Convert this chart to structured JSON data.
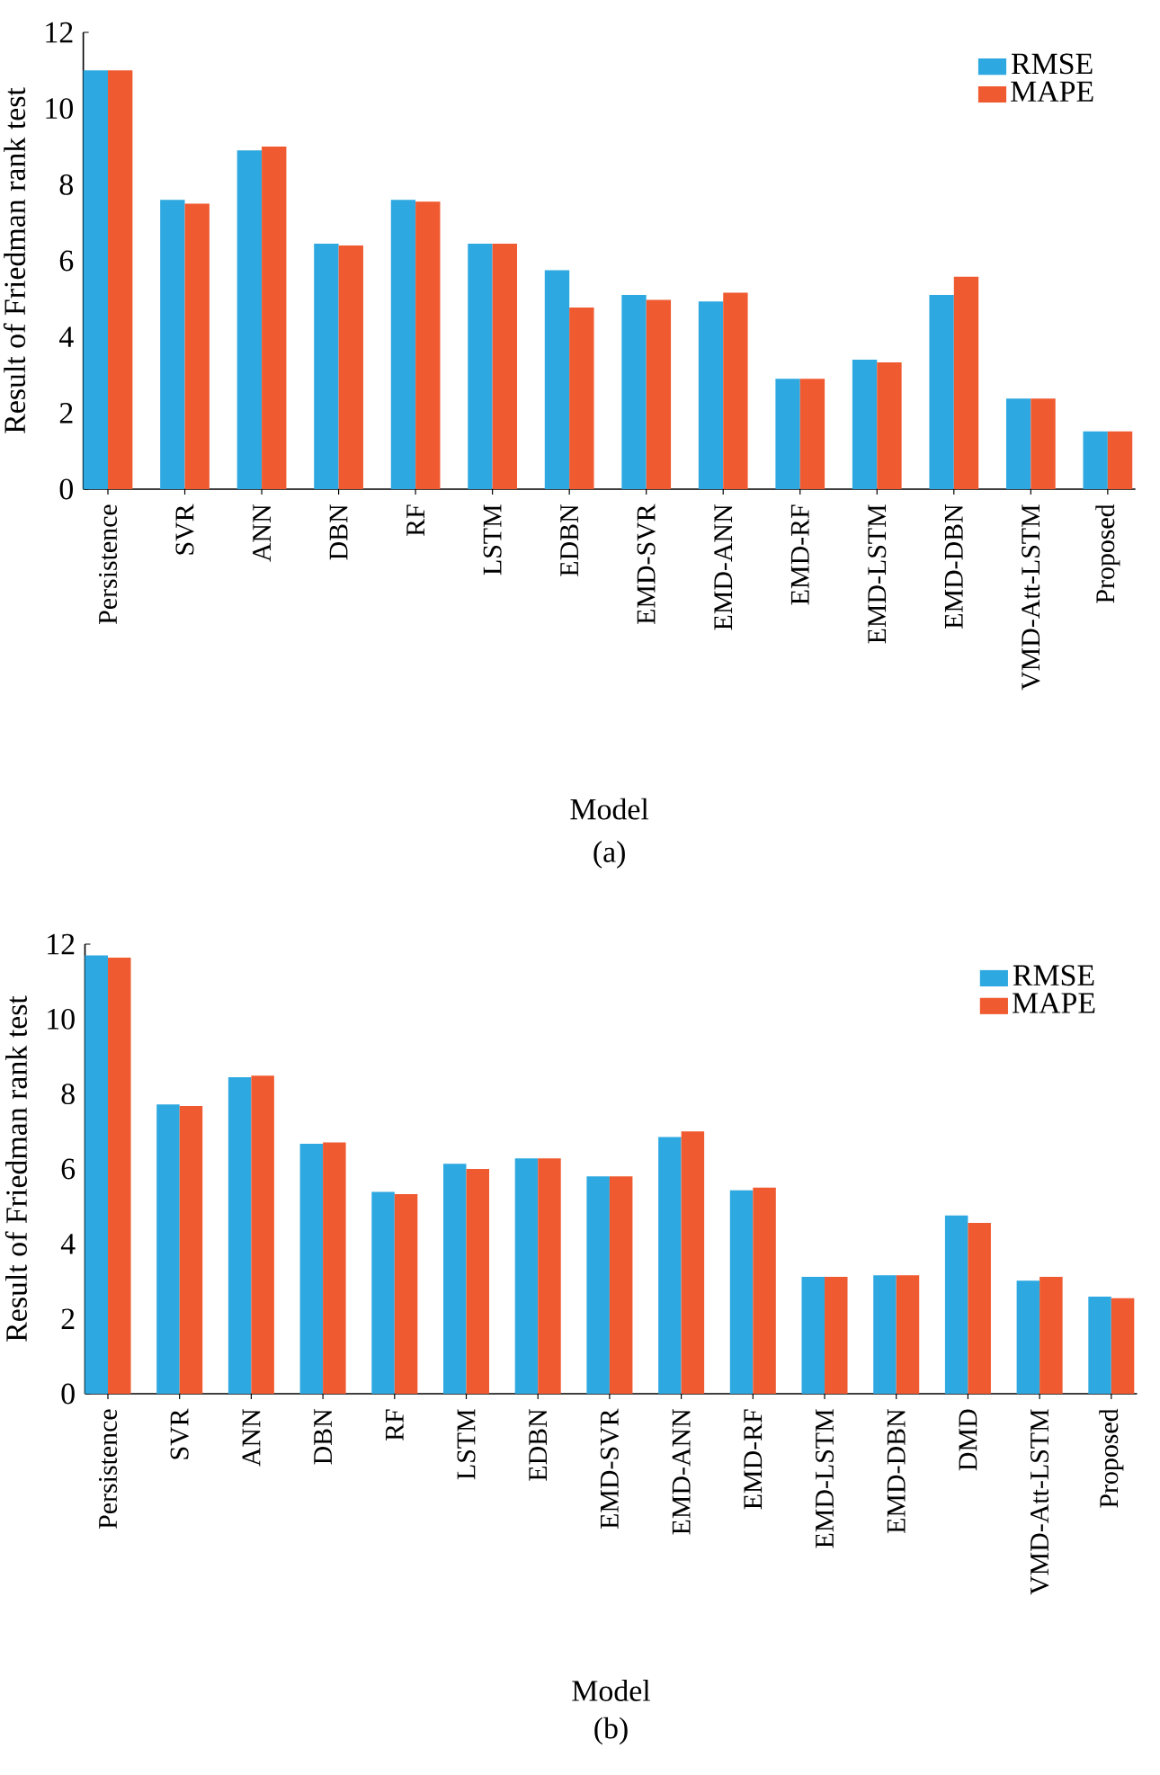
{
  "chart_data": [
    {
      "type": "bar",
      "xlabel": "Model",
      "ylabel": "Result of Friedman rank test",
      "annotations": [
        "(a)"
      ],
      "categories": [
        "Persistence",
        "SVR",
        "ANN",
        "DBN",
        "RF",
        "LSTM",
        "EDBN",
        "EMD-SVR",
        "EMD-ANN",
        "EMD-RF",
        "EMD-LSTM",
        "EMD-DBN",
        "VMD-Att-LSTM",
        "Proposed"
      ],
      "series": [
        {
          "name": "RMSE",
          "color": "#2ea8e0",
          "values": [
            11.0,
            7.6,
            8.9,
            6.45,
            7.6,
            6.45,
            5.75,
            5.1,
            4.93,
            2.9,
            3.4,
            5.1,
            2.38,
            1.52
          ]
        },
        {
          "name": "MAPE",
          "color": "#f05a30",
          "values": [
            11.0,
            7.5,
            9.0,
            6.4,
            7.55,
            6.45,
            4.77,
            4.97,
            5.16,
            2.9,
            3.33,
            5.58,
            2.38,
            1.52
          ]
        }
      ],
      "ylim": [
        0,
        12
      ],
      "yticks": [
        0,
        2,
        4,
        6,
        8,
        10,
        12
      ],
      "legend": "top right"
    },
    {
      "type": "bar",
      "xlabel": "Model",
      "ylabel": "Result of Friedman rank test",
      "annotations": [
        "(b)"
      ],
      "categories": [
        "Persistence",
        "SVR",
        "ANN",
        "DBN",
        "RF",
        "LSTM",
        "EDBN",
        "EMD-SVR",
        "EMD-ANN",
        "EMD-RF",
        "EMD-LSTM",
        "EMD-DBN",
        "DMD",
        "VMD-Att-LSTM",
        "Proposed"
      ],
      "series": [
        {
          "name": "RMSE",
          "color": "#2ea8e0",
          "values": [
            11.7,
            7.72,
            8.45,
            6.67,
            5.39,
            6.14,
            6.28,
            5.8,
            6.85,
            5.43,
            3.12,
            3.16,
            4.76,
            3.02,
            2.59
          ]
        },
        {
          "name": "MAPE",
          "color": "#f05a30",
          "values": [
            11.64,
            7.68,
            8.49,
            6.71,
            5.33,
            6.0,
            6.28,
            5.8,
            7.0,
            5.5,
            3.12,
            3.16,
            4.56,
            3.12,
            2.55
          ]
        }
      ],
      "ylim": [
        0,
        12
      ],
      "yticks": [
        0,
        2,
        4,
        6,
        8,
        10,
        12
      ],
      "legend": "top right"
    }
  ]
}
